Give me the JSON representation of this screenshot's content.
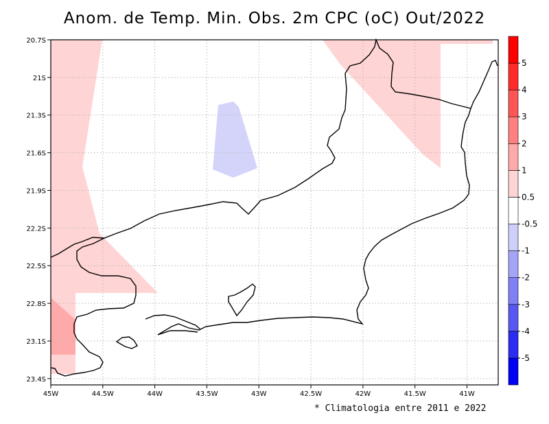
{
  "title": "Anom. de Temp. Min. Obs. 2m CPC (oC) Out/2022",
  "footnote": "* Climatologia entre 2011 e 2022",
  "map": {
    "lon_range": [
      -45,
      -40.7
    ],
    "lat_range": [
      -23.45,
      -20.7
    ],
    "grid": true,
    "lon_ticks": [
      {
        "v": -45,
        "label": "45W"
      },
      {
        "v": -44.5,
        "label": "44.5W"
      },
      {
        "v": -44,
        "label": "44W"
      },
      {
        "v": -43.5,
        "label": "43.5W"
      },
      {
        "v": -43,
        "label": "43W"
      },
      {
        "v": -42.5,
        "label": "42.5W"
      },
      {
        "v": -42,
        "label": "42W"
      },
      {
        "v": -41.5,
        "label": "41.5W"
      },
      {
        "v": -41,
        "label": "41W"
      }
    ],
    "lat_ticks": [
      {
        "v": -20.7,
        "label": "20.7S"
      },
      {
        "v": -21,
        "label": "21S"
      },
      {
        "v": -21.3,
        "label": "21.3S"
      },
      {
        "v": -21.6,
        "label": "21.6S"
      },
      {
        "v": -21.9,
        "label": "21.9S"
      },
      {
        "v": -22.2,
        "label": "22.2S"
      },
      {
        "v": -22.5,
        "label": "22.5S"
      },
      {
        "v": -22.8,
        "label": "22.8S"
      },
      {
        "v": -23.1,
        "label": "23.1S"
      },
      {
        "v": -23.4,
        "label": "23.4S"
      }
    ]
  },
  "colorbar": {
    "labels": [
      "-5",
      "-4",
      "-3",
      "-2",
      "-1",
      "-0.5",
      "0.5",
      "1",
      "2",
      "3",
      "4",
      "5"
    ],
    "colors": [
      "#0000f2",
      "#2b2bf2",
      "#5757f4",
      "#7f7ff6",
      "#a5a5f8",
      "#cfcffb",
      "#ffffff",
      "#ffd4d4",
      "#ffaaaa",
      "#ff8080",
      "#ff5555",
      "#ff2b2b",
      "#ff0000"
    ]
  },
  "anomaly_colors": {
    "positive_light": "#ffd4d4",
    "positive_medium": "#ffaaaa",
    "negative_light": "#d4d4fa"
  },
  "outline_color": "#000000"
}
